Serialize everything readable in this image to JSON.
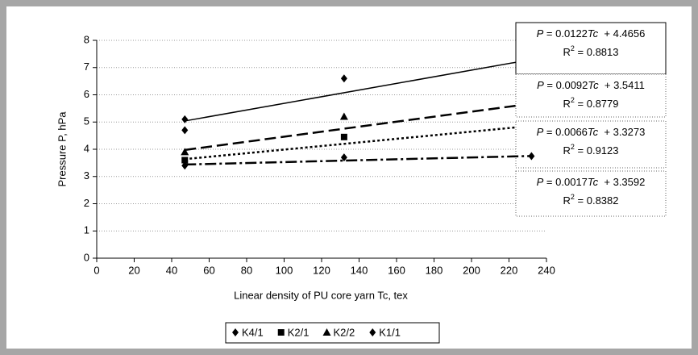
{
  "chart_data": {
    "type": "scatter",
    "ylabel": "Pressure P, hPa",
    "xlabel": "Linear density of PU core yarn Tc, tex",
    "xlim": [
      0,
      240
    ],
    "xticks": [
      0,
      20,
      40,
      60,
      80,
      100,
      120,
      140,
      160,
      180,
      200,
      220,
      240
    ],
    "ylim": [
      0,
      8
    ],
    "yticks": [
      0,
      1,
      2,
      3,
      4,
      5,
      6,
      7,
      8
    ],
    "grid": true,
    "legend": "bottom",
    "equation_symbols": {
      "lhs": "P",
      "eq": " = ",
      "var": "Tc",
      "plus": "  + ",
      "r": "R",
      "sup": "2"
    },
    "series": [
      {
        "name": "K4/1",
        "color": "#000000",
        "marker": "diamond",
        "x": [
          47,
          47,
          132,
          232
        ],
        "values": [
          5.1,
          4.7,
          6.6,
          7.1
        ],
        "trendline": {
          "slope": 0.0122,
          "intercept": 4.4656,
          "r2": 0.8813,
          "dash": "solid",
          "box": "solid"
        }
      },
      {
        "name": "K2/1",
        "color": "#000000",
        "marker": "square",
        "x": [
          47,
          132,
          232
        ],
        "values": [
          3.6,
          4.45,
          4.8
        ],
        "trendline": {
          "slope": 0.0066,
          "intercept": 3.3273,
          "r2": 0.9123,
          "dash": "dotted",
          "box": "dotted"
        }
      },
      {
        "name": "K2/2",
        "color": "#000000",
        "marker": "triangle",
        "x": [
          47,
          132,
          232
        ],
        "values": [
          3.9,
          5.2,
          5.5
        ],
        "trendline": {
          "slope": 0.0092,
          "intercept": 3.5411,
          "r2": 0.8779,
          "dash": "dashed",
          "box": "dotted"
        }
      },
      {
        "name": "K1/1",
        "color": "#000000",
        "marker": "diamond",
        "x": [
          47,
          132,
          232
        ],
        "values": [
          3.4,
          3.7,
          3.75
        ],
        "trendline": {
          "slope": 0.0017,
          "intercept": 3.3592,
          "r2": 0.8382,
          "dash": "dashdot",
          "box": "dotted"
        }
      }
    ]
  }
}
